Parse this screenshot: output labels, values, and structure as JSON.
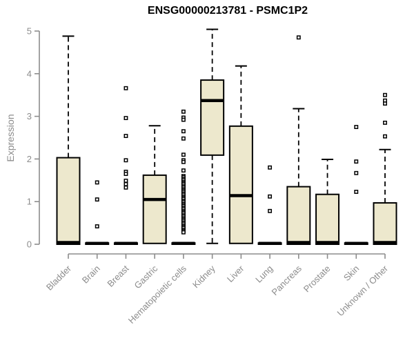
{
  "chart_data": {
    "type": "boxplot",
    "title": "ENSG00000213781 - PSMC1P2",
    "xlabel": "",
    "ylabel": "Expression",
    "ylim": [
      0,
      5
    ],
    "yticks": [
      0,
      1,
      2,
      3,
      4,
      5
    ],
    "grid": false,
    "legend": false,
    "categories": [
      "Bladder",
      "Brain",
      "Breast",
      "Gastric",
      "Hematopoietic cells",
      "Kidney",
      "Liver",
      "Lung",
      "Pancreas",
      "Prostate",
      "Skin",
      "Unknown / Other"
    ],
    "series": [
      {
        "name": "Bladder",
        "whisker_low": 0,
        "q1": 0,
        "median": 0.04,
        "q3": 2.03,
        "whisker_high": 4.88,
        "outliers": []
      },
      {
        "name": "Brain",
        "whisker_low": 0,
        "q1": 0,
        "median": 0.02,
        "q3": 0.03,
        "whisker_high": 0.03,
        "outliers": [
          1.45,
          1.05,
          0.42
        ]
      },
      {
        "name": "Breast",
        "whisker_low": 0,
        "q1": 0,
        "median": 0.02,
        "q3": 0.03,
        "whisker_high": 0.03,
        "outliers": [
          3.66,
          2.96,
          2.54,
          1.97,
          1.7,
          1.65,
          1.49,
          1.41,
          1.33
        ]
      },
      {
        "name": "Gastric",
        "whisker_low": 0.02,
        "q1": 0.02,
        "median": 1.05,
        "q3": 1.62,
        "whisker_high": 2.78,
        "outliers": []
      },
      {
        "name": "Hematopoietic cells",
        "whisker_low": 0,
        "q1": 0,
        "median": 0.02,
        "q3": 0.03,
        "whisker_high": 0.03,
        "outliers": [
          3.11,
          2.97,
          2.92,
          2.65,
          2.48,
          2.1,
          1.97,
          1.93,
          1.73,
          1.6,
          1.57,
          1.53,
          1.5,
          1.46,
          1.43,
          1.4,
          1.36,
          1.33,
          1.29,
          1.26,
          1.23,
          1.19,
          1.16,
          1.12,
          1.09,
          1.06,
          1.02,
          0.99,
          0.95,
          0.92,
          0.89,
          0.85,
          0.82,
          0.78,
          0.75,
          0.72,
          0.68,
          0.65,
          0.61,
          0.58,
          0.55,
          0.51,
          0.48,
          0.44,
          0.41,
          0.38,
          0.34,
          0.31,
          0.28
        ]
      },
      {
        "name": "Kidney",
        "whisker_low": 0.02,
        "q1": 2.09,
        "median": 3.37,
        "q3": 3.85,
        "whisker_high": 5.04,
        "outliers": []
      },
      {
        "name": "Liver",
        "whisker_low": 0.02,
        "q1": 0.02,
        "median": 1.14,
        "q3": 2.77,
        "whisker_high": 4.18,
        "outliers": []
      },
      {
        "name": "Lung",
        "whisker_low": 0,
        "q1": 0,
        "median": 0.02,
        "q3": 0.03,
        "whisker_high": 0.03,
        "outliers": [
          1.8,
          1.12,
          0.78
        ]
      },
      {
        "name": "Pancreas",
        "whisker_low": 0,
        "q1": 0,
        "median": 0.04,
        "q3": 1.35,
        "whisker_high": 3.18,
        "outliers": [
          4.85
        ]
      },
      {
        "name": "Prostate",
        "whisker_low": 0,
        "q1": 0,
        "median": 0.04,
        "q3": 1.17,
        "whisker_high": 1.99,
        "outliers": []
      },
      {
        "name": "Skin",
        "whisker_low": 0,
        "q1": 0,
        "median": 0.02,
        "q3": 0.03,
        "whisker_high": 0.03,
        "outliers": [
          2.75,
          1.94,
          1.67,
          1.23
        ]
      },
      {
        "name": "Unknown / Other",
        "whisker_low": 0,
        "q1": 0,
        "median": 0.04,
        "q3": 0.97,
        "whisker_high": 2.22,
        "outliers": [
          3.5,
          3.37,
          3.3,
          2.85,
          2.53
        ]
      }
    ],
    "style": {
      "box_fill": "#EDE8CD",
      "box_border": "#000000",
      "median_color": "#000000",
      "whisker_style": "dashed",
      "outlier_marker": "open-square",
      "axis_color": "#8C8C8C",
      "tick_label_color": "#8C8C8C",
      "title_color": "#000000",
      "background": "#FFFFFF"
    }
  }
}
